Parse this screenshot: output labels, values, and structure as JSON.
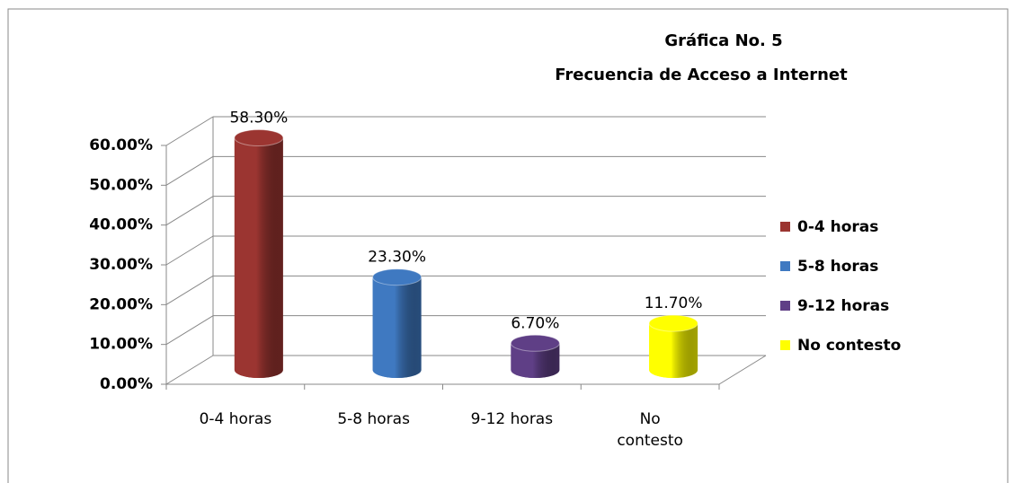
{
  "chart_data": {
    "type": "bar3d",
    "title": "Gráfica No. 5",
    "subtitle": "Frecuencia de Acceso a Internet",
    "categories": [
      "0-4 horas",
      "5-8 horas",
      "9-12 horas",
      "No contesto"
    ],
    "values": [
      58.3,
      23.3,
      6.7,
      11.7
    ],
    "value_labels": [
      "58.30%",
      "23.30%",
      "6.70%",
      "11.70%"
    ],
    "colors": [
      "#9b3531",
      "#3f79c1",
      "#5f3f86",
      "#ffff00"
    ],
    "ylim": [
      0,
      60
    ],
    "yticks": [
      {
        "value": 0,
        "label": "0.00%"
      },
      {
        "value": 10,
        "label": "10.00%"
      },
      {
        "value": 20,
        "label": "20.00%"
      },
      {
        "value": 30,
        "label": "30.00%"
      },
      {
        "value": 40,
        "label": "40.00%"
      },
      {
        "value": 50,
        "label": "50.00%"
      },
      {
        "value": 60,
        "label": "60.00%"
      }
    ],
    "grid": true,
    "legend": "right"
  }
}
